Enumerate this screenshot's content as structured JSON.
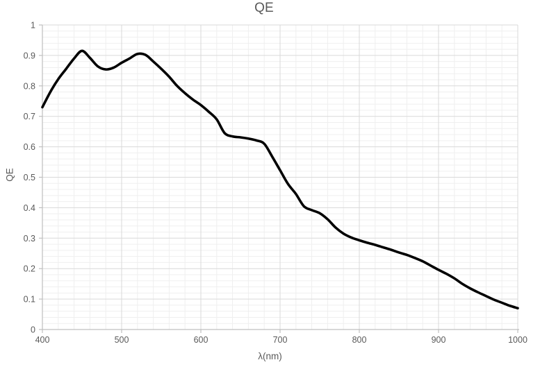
{
  "title": "QE",
  "colors": {
    "background": "#ffffff",
    "text": "#595959",
    "curve": "#000000",
    "gridline_major": "#d9d9d9",
    "gridline_minor": "#efefef",
    "axis_line": "#bfbfbf"
  },
  "chart_data": {
    "type": "line",
    "title": "QE",
    "xlabel": "λ(nm)",
    "ylabel": "QE",
    "xlim": [
      400,
      1000
    ],
    "ylim": [
      0,
      1
    ],
    "x_major_step": 100,
    "x_minor_step": 20,
    "y_major_step": 0.1,
    "y_minor_step": 0.02,
    "x_tick_labels": [
      "400",
      "500",
      "600",
      "700",
      "800",
      "900",
      "1000"
    ],
    "y_tick_labels": [
      "0",
      "0.1",
      "0.2",
      "0.3",
      "0.4",
      "0.5",
      "0.6",
      "0.7",
      "0.8",
      "0.9",
      "1"
    ],
    "grid": "major and minor, both axes",
    "legend": "none",
    "series": [
      {
        "name": "QE",
        "color": "#000000",
        "smooth": true,
        "x": [
          400,
          410,
          420,
          430,
          440,
          450,
          460,
          470,
          480,
          490,
          500,
          510,
          520,
          530,
          540,
          550,
          560,
          570,
          580,
          590,
          600,
          610,
          620,
          630,
          640,
          650,
          660,
          670,
          680,
          690,
          700,
          710,
          720,
          730,
          740,
          750,
          760,
          770,
          780,
          790,
          800,
          810,
          820,
          830,
          840,
          850,
          860,
          870,
          880,
          890,
          900,
          910,
          920,
          930,
          940,
          950,
          960,
          970,
          980,
          990,
          1000
        ],
        "y": [
          0.73,
          0.78,
          0.822,
          0.856,
          0.89,
          0.915,
          0.892,
          0.864,
          0.854,
          0.86,
          0.876,
          0.89,
          0.905,
          0.902,
          0.88,
          0.856,
          0.83,
          0.8,
          0.776,
          0.755,
          0.737,
          0.715,
          0.69,
          0.645,
          0.634,
          0.631,
          0.627,
          0.621,
          0.61,
          0.568,
          0.523,
          0.478,
          0.445,
          0.405,
          0.392,
          0.382,
          0.362,
          0.335,
          0.315,
          0.302,
          0.293,
          0.285,
          0.278,
          0.27,
          0.262,
          0.253,
          0.245,
          0.235,
          0.224,
          0.21,
          0.196,
          0.183,
          0.168,
          0.15,
          0.135,
          0.122,
          0.11,
          0.098,
          0.088,
          0.078,
          0.07
        ]
      }
    ]
  }
}
